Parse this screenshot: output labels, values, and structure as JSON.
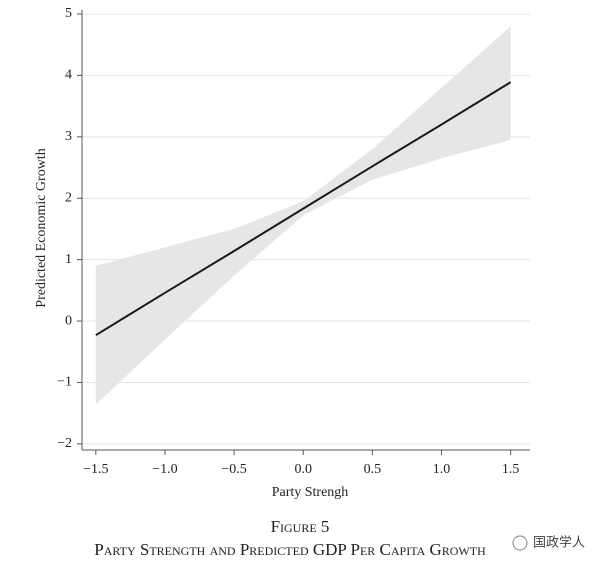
{
  "chart_data": {
    "type": "line",
    "x_label": "Party Strengh",
    "y_label": "Predicted Economic Growth",
    "caption_label": "Figure 5",
    "caption_title": "Party Strength and Predicted GDP Per Capita Growth",
    "watermark": "国政学人",
    "x": [
      -1.5,
      -1,
      -0.5,
      0,
      0.5,
      1,
      1.5
    ],
    "values": [
      -0.23,
      0.46,
      1.14,
      1.83,
      2.52,
      3.2,
      3.89
    ],
    "upper": [
      0.9,
      1.2,
      1.5,
      1.95,
      2.8,
      3.8,
      4.8
    ],
    "lower": [
      -1.36,
      -0.3,
      0.74,
      1.72,
      2.3,
      2.65,
      2.95
    ],
    "color": "#1a1a1a",
    "band_color": "#e6e6e6",
    "grid": true,
    "xlim": [
      -1.6,
      1.64
    ],
    "ylim": [
      -2.1,
      5
    ],
    "xticks": [
      {
        "value": -1.5,
        "label": "−1.5"
      },
      {
        "value": -1,
        "label": "−1.0"
      },
      {
        "value": -0.5,
        "label": "−0.5"
      },
      {
        "value": 0,
        "label": "0.0"
      },
      0.5,
      {
        "value": 1,
        "label": "1.0"
      },
      1.5
    ],
    "yticks": [
      {
        "value": -2,
        "label": "−2"
      },
      {
        "value": -1,
        "label": "−1"
      },
      0,
      1,
      2,
      3,
      4,
      5
    ]
  }
}
